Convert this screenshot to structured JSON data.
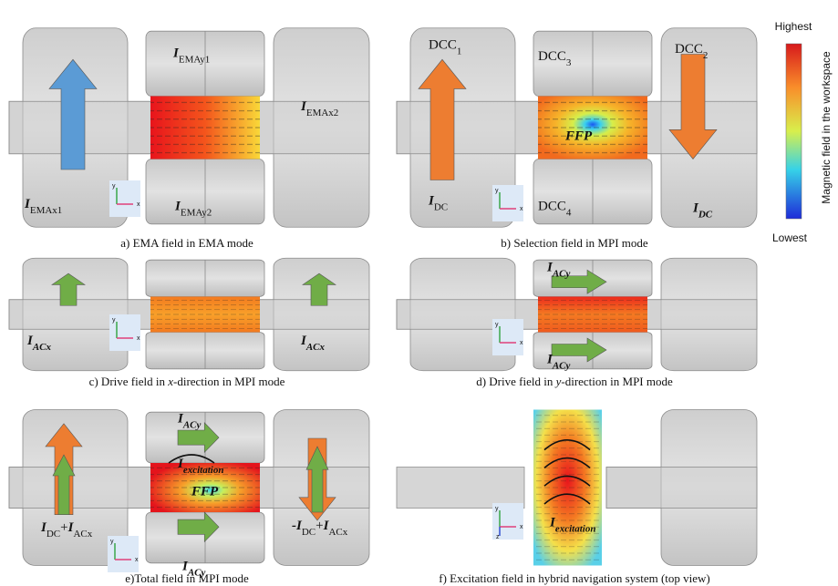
{
  "colorbar": {
    "high": "Highest",
    "low": "Lowest",
    "title": "Magnetic field in the workspace"
  },
  "panels": [
    {
      "caption": [
        {
          "text": "a) EMA field in EMA mode"
        }
      ],
      "axes": [
        "y",
        "x"
      ],
      "labels": [
        [
          {
            "text": "I",
            "bold": true,
            "italic": true
          },
          {
            "text": "EMAx1",
            "sub": true
          }
        ],
        [
          {
            "text": "I",
            "bold": true,
            "italic": true
          },
          {
            "text": "EMAy1",
            "sub": true
          }
        ],
        [
          {
            "text": "I",
            "bold": true,
            "italic": true
          },
          {
            "text": "EMAy2",
            "sub": true
          }
        ],
        [
          {
            "text": "I",
            "bold": true,
            "italic": true
          },
          {
            "text": "EMAx2",
            "sub": true
          }
        ]
      ]
    },
    {
      "caption": [
        {
          "text": "b) Selection field in MPI mode"
        }
      ],
      "axes": [
        "y",
        "x"
      ],
      "labels": [
        [
          {
            "text": "DCC"
          },
          {
            "text": "1",
            "sub": true
          }
        ],
        [
          {
            "text": "DCC"
          },
          {
            "text": "3",
            "sub": true
          }
        ],
        [
          {
            "text": "DCC"
          },
          {
            "text": "2",
            "sub": true
          }
        ],
        [
          {
            "text": "DCC"
          },
          {
            "text": "4",
            "sub": true
          }
        ],
        [
          {
            "text": "FFP",
            "bold": true,
            "italic": true
          }
        ],
        [
          {
            "text": "I",
            "bold": true,
            "italic": true
          },
          {
            "text": "DC",
            "sub": true
          }
        ],
        [
          {
            "text": "I",
            "bold": true,
            "italic": true
          },
          {
            "text": "DC",
            "sub": true,
            "bold": true,
            "italic": true
          }
        ]
      ]
    },
    {
      "caption": [
        {
          "text": "c) Drive field in "
        },
        {
          "text": "x",
          "italic": true
        },
        {
          "text": "-direction in MPI mode"
        }
      ],
      "axes": [
        "y",
        "x"
      ],
      "labels": [
        [
          {
            "text": "I",
            "bold": true,
            "italic": true
          },
          {
            "text": "ACx",
            "sub": true,
            "bold": true,
            "italic": true
          }
        ],
        [
          {
            "text": "I",
            "bold": true,
            "italic": true
          },
          {
            "text": "ACx",
            "sub": true,
            "bold": true,
            "italic": true
          }
        ]
      ]
    },
    {
      "caption": [
        {
          "text": "d) Drive field in "
        },
        {
          "text": "y",
          "italic": true
        },
        {
          "text": "-direction in MPI mode"
        }
      ],
      "axes": [
        "y",
        "x"
      ],
      "labels": [
        [
          {
            "text": "I",
            "bold": true,
            "italic": true
          },
          {
            "text": "ACy",
            "sub": true,
            "bold": true,
            "italic": true
          }
        ],
        [
          {
            "text": "I",
            "bold": true,
            "italic": true
          },
          {
            "text": "ACy",
            "sub": true,
            "bold": true,
            "italic": true
          }
        ]
      ]
    },
    {
      "caption": [
        {
          "text": "e)Total field in MPI mode"
        }
      ],
      "axes": [
        "y",
        "x"
      ],
      "labels": [
        [
          {
            "text": "I",
            "bold": true,
            "italic": true
          },
          {
            "text": "ACy",
            "sub": true,
            "bold": true,
            "italic": true
          }
        ],
        [
          {
            "text": "I",
            "bold": true,
            "italic": true
          },
          {
            "text": "excitation",
            "sub": true,
            "bold": true,
            "italic": true
          }
        ],
        [
          {
            "text": "FFP",
            "bold": true,
            "italic": true
          }
        ],
        [
          {
            "text": "I",
            "bold": true,
            "italic": true
          },
          {
            "text": "DC",
            "sub": true
          },
          {
            "text": "+"
          },
          {
            "text": "I",
            "bold": true,
            "italic": true
          },
          {
            "text": "ACx",
            "sub": true
          }
        ],
        [
          {
            "text": "-I",
            "bold": true,
            "italic": true
          },
          {
            "text": "DC",
            "sub": true
          },
          {
            "text": "+"
          },
          {
            "text": "I",
            "bold": true,
            "italic": true
          },
          {
            "text": "ACx",
            "sub": true
          }
        ],
        [
          {
            "text": "I",
            "bold": true,
            "italic": true
          },
          {
            "text": "ACy",
            "sub": true,
            "bold": true,
            "italic": true
          }
        ]
      ]
    },
    {
      "caption": [
        {
          "text": "f) Excitation field in hybrid navigation system (top view)"
        }
      ],
      "axes": [
        "y",
        "x",
        "z"
      ],
      "labels": [
        [
          {
            "text": "I",
            "bold": true,
            "italic": true
          },
          {
            "text": "excitation",
            "sub": true,
            "bold": true,
            "italic": true
          }
        ]
      ]
    }
  ]
}
